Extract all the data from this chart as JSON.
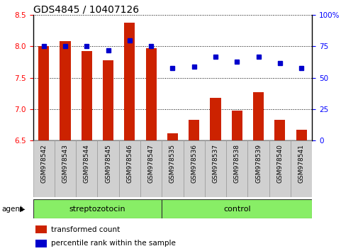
{
  "title": "GDS4845 / 10407126",
  "samples": [
    "GSM978542",
    "GSM978543",
    "GSM978544",
    "GSM978545",
    "GSM978546",
    "GSM978547",
    "GSM978535",
    "GSM978536",
    "GSM978537",
    "GSM978538",
    "GSM978539",
    "GSM978540",
    "GSM978541"
  ],
  "bar_values": [
    8.0,
    8.08,
    7.93,
    7.78,
    8.38,
    7.97,
    6.62,
    6.83,
    7.18,
    6.98,
    7.27,
    6.83,
    6.67
  ],
  "dot_values": [
    75,
    75,
    75,
    72,
    80,
    75,
    58,
    59,
    67,
    63,
    67,
    62,
    58
  ],
  "bar_color": "#cc2200",
  "dot_color": "#0000cc",
  "ylim_left": [
    6.5,
    8.5
  ],
  "ylim_right": [
    0,
    100
  ],
  "yticks_left": [
    6.5,
    7.0,
    7.5,
    8.0,
    8.5
  ],
  "yticks_right": [
    0,
    25,
    50,
    75,
    100
  ],
  "legend": [
    {
      "label": "transformed count",
      "color": "#cc2200"
    },
    {
      "label": "percentile rank within the sample",
      "color": "#0000cc"
    }
  ],
  "background_color": "#ffffff",
  "tick_box_color": "#d0d0d0",
  "tick_box_edge": "#999999",
  "group_fill_color": "#88ee66",
  "group_edge_color": "#333333",
  "groups": [
    {
      "label": "streptozotocin",
      "start": 0,
      "end": 5
    },
    {
      "label": "control",
      "start": 6,
      "end": 12
    }
  ],
  "bar_width": 0.5,
  "title_fontsize": 10,
  "tick_fontsize": 6.5,
  "axis_fontsize": 7.5,
  "group_fontsize": 8,
  "legend_fontsize": 7.5
}
